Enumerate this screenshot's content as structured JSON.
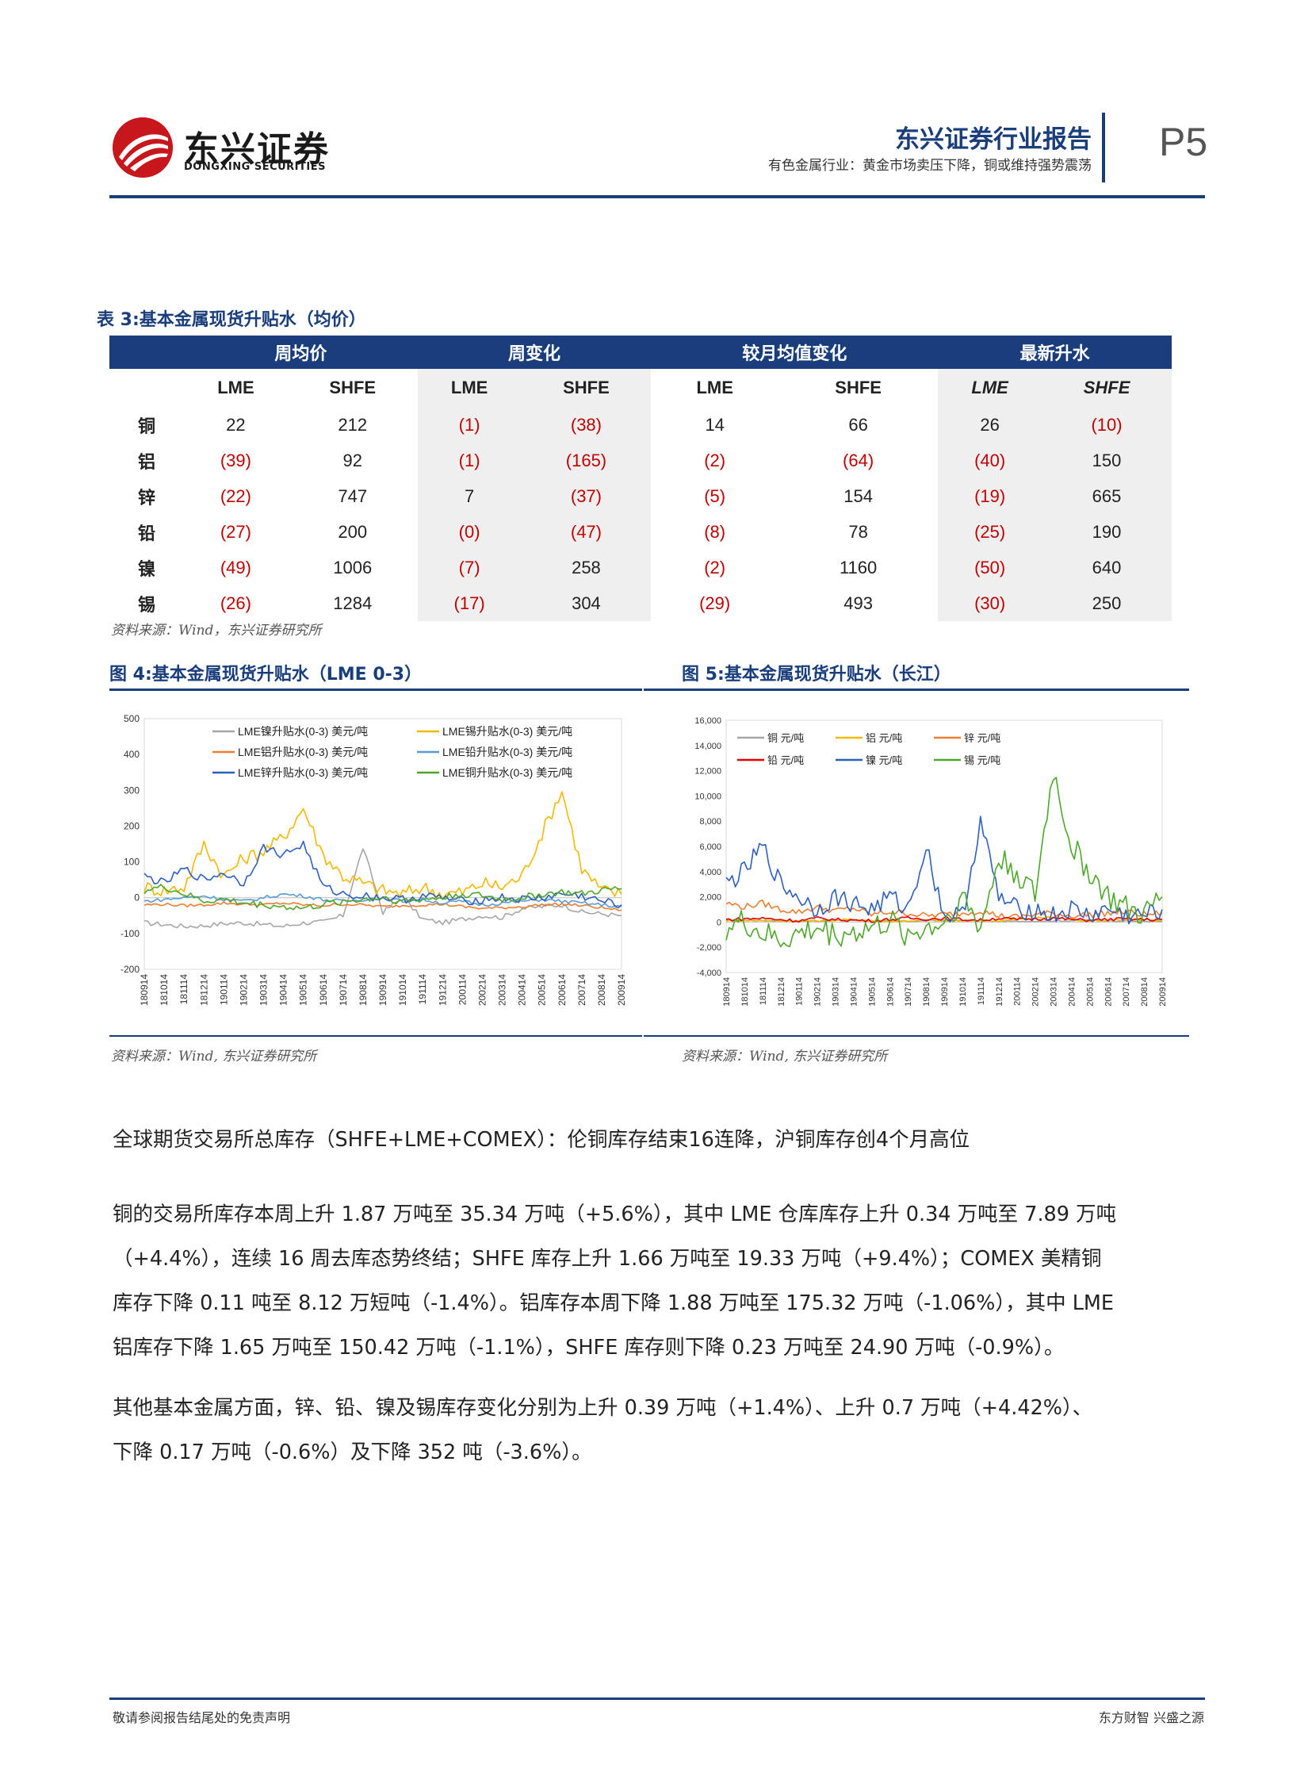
{
  "header": {
    "logo_cn": "东兴证券",
    "logo_en": "DONGXING SECURITIES",
    "report_type": "东兴证券行业报告",
    "subtitle": "有色金属行业：黄金市场卖压下降，铜或维持强势震荡",
    "page": "P5"
  },
  "table": {
    "title": "表 3:基本金属现货升贴水（均价）",
    "groups": [
      "周均价",
      "周变化",
      "较月均值变化",
      "最新升水"
    ],
    "subheaders": [
      "LME",
      "SHFE",
      "LME",
      "SHFE",
      "LME",
      "SHFE",
      "LME",
      "SHFE"
    ],
    "rows": [
      {
        "name": "铜",
        "values": [
          "22",
          "212",
          "(1)",
          "(38)",
          "14",
          "66",
          "26",
          "(10)"
        ]
      },
      {
        "name": "铝",
        "values": [
          "(39)",
          "92",
          "(1)",
          "(165)",
          "(2)",
          "(64)",
          "(40)",
          "150"
        ]
      },
      {
        "name": "锌",
        "values": [
          "(22)",
          "747",
          "7",
          "(37)",
          "(5)",
          "154",
          "(19)",
          "665"
        ]
      },
      {
        "name": "铅",
        "values": [
          "(27)",
          "200",
          "(0)",
          "(47)",
          "(8)",
          "78",
          "(25)",
          "190"
        ]
      },
      {
        "name": "镍",
        "values": [
          "(49)",
          "1006",
          "(7)",
          "258",
          "(2)",
          "1160",
          "(50)",
          "640"
        ]
      },
      {
        "name": "锡",
        "values": [
          "(26)",
          "1284",
          "(17)",
          "304",
          "(29)",
          "493",
          "(30)",
          "250"
        ]
      }
    ],
    "source": "资料来源：Wind，东兴证券研究所"
  },
  "figure4": {
    "title": "图 4:基本金属现货升贴水（LME 0-3）",
    "source": "资料来源：Wind, 东兴证券研究所"
  },
  "figure5": {
    "title": "图 5:基本金属现货升贴水（长江）",
    "source": "资料来源：Wind, 东兴证券研究所"
  },
  "chart_data": [
    {
      "type": "line",
      "y_ticks": [
        "500",
        "400",
        "300",
        "200",
        "100",
        "0",
        "-100",
        "-200"
      ],
      "ylim": [
        -200,
        500
      ],
      "x_ticks": [
        "180914",
        "181014",
        "181114",
        "181214",
        "190114",
        "190214",
        "190314",
        "190414",
        "190514",
        "190614",
        "190714",
        "190814",
        "190914",
        "191014",
        "191114",
        "191214",
        "200114",
        "200214",
        "200314",
        "200414",
        "200514",
        "200614",
        "200714",
        "200814",
        "200914"
      ],
      "series": [
        {
          "name": "LME镍升贴水(0-3) 美元/吨",
          "color": "#a6a6a6",
          "values": [
            -70,
            -75,
            -80,
            -78,
            -72,
            -70,
            -75,
            -80,
            -70,
            -68,
            -50,
            140,
            -40,
            0,
            -60,
            -70,
            -60,
            -50,
            -55,
            -30,
            -25,
            -20,
            -40,
            -45,
            -50
          ]
        },
        {
          "name": "LME锡升贴水(0-3) 美元/吨",
          "color": "#f5b800",
          "values": [
            30,
            20,
            30,
            150,
            60,
            110,
            130,
            170,
            250,
            120,
            60,
            40,
            20,
            10,
            30,
            10,
            15,
            40,
            30,
            60,
            180,
            300,
            80,
            20,
            10
          ]
        },
        {
          "name": "LME铝升贴水(0-3) 美元/吨",
          "color": "#ed7d31",
          "values": [
            -20,
            -18,
            -22,
            -20,
            -15,
            -18,
            -20,
            -15,
            -20,
            -22,
            -18,
            -20,
            -25,
            -22,
            -20,
            -18,
            -25,
            -30,
            -28,
            -25,
            -20,
            -18,
            -22,
            -28,
            -35
          ]
        },
        {
          "name": "LME铅升贴水(0-3) 美元/吨",
          "color": "#5b9bd5",
          "values": [
            -10,
            -5,
            0,
            5,
            -5,
            -10,
            0,
            10,
            5,
            -5,
            -10,
            -5,
            0,
            -10,
            -5,
            -15,
            -10,
            -20,
            -15,
            -10,
            -5,
            -10,
            -15,
            -20,
            -25
          ]
        },
        {
          "name": "LME锌升贴水(0-3) 美元/吨",
          "color": "#2e5fbf",
          "values": [
            60,
            40,
            80,
            50,
            70,
            40,
            140,
            120,
            150,
            30,
            10,
            5,
            0,
            -5,
            5,
            0,
            -10,
            -5,
            0,
            -5,
            0,
            10,
            5,
            -10,
            -20
          ]
        },
        {
          "name": "LME铜升贴水(0-3) 美元/吨",
          "color": "#4ea72a",
          "values": [
            20,
            30,
            10,
            -10,
            -5,
            -15,
            -20,
            -25,
            -30,
            -20,
            -10,
            -5,
            0,
            -10,
            -5,
            0,
            10,
            5,
            -5,
            0,
            10,
            15,
            10,
            20,
            25
          ]
        }
      ]
    },
    {
      "type": "line",
      "y_ticks": [
        "16,000",
        "14,000",
        "12,000",
        "10,000",
        "8,000",
        "6,000",
        "4,000",
        "2,000",
        "0",
        "-2,000",
        "-4,000"
      ],
      "ylim": [
        -4000,
        16000
      ],
      "x_ticks": [
        "180914",
        "181014",
        "181114",
        "181214",
        "190114",
        "190214",
        "190314",
        "190414",
        "190514",
        "190614",
        "190714",
        "190814",
        "190914",
        "191014",
        "191114",
        "191214",
        "200114",
        "200214",
        "200314",
        "200414",
        "200514",
        "200614",
        "200714",
        "200814",
        "200914"
      ],
      "series": [
        {
          "name": "铜 元/吨",
          "color": "#a6a6a6",
          "values": [
            100,
            150,
            120,
            100,
            80,
            100,
            120,
            150,
            100,
            80,
            60,
            100,
            120,
            150,
            100,
            50,
            60,
            80,
            100,
            120,
            150,
            100,
            80,
            60,
            50
          ]
        },
        {
          "name": "铝 元/吨",
          "color": "#f5b800",
          "values": [
            100,
            120,
            150,
            100,
            80,
            100,
            150,
            200,
            100,
            50,
            100,
            150,
            120,
            100,
            150,
            100,
            200,
            300,
            400,
            200,
            100,
            150,
            200,
            150,
            100
          ]
        },
        {
          "name": "锌 元/吨",
          "color": "#ed7d31",
          "values": [
            1500,
            1200,
            1500,
            1000,
            800,
            1200,
            900,
            1100,
            600,
            800,
            700,
            500,
            600,
            700,
            900,
            500,
            400,
            600,
            700,
            500,
            600,
            700,
            800,
            600,
            700
          ]
        },
        {
          "name": "铅 元/吨",
          "color": "#e00000",
          "values": [
            200,
            250,
            300,
            200,
            100,
            300,
            200,
            150,
            100,
            200,
            300,
            250,
            300,
            200,
            150,
            300,
            200,
            250,
            300,
            200,
            150,
            200,
            250,
            200,
            200
          ]
        },
        {
          "name": "镍 元/吨",
          "color": "#2e5fbf",
          "values": [
            3000,
            4000,
            6000,
            3000,
            2000,
            1000,
            2000,
            1500,
            1000,
            2000,
            1000,
            6000,
            500,
            500,
            8000,
            2000,
            1000,
            1000,
            500,
            1000,
            500,
            1000,
            500,
            500,
            1000
          ]
        },
        {
          "name": "锡 元/吨",
          "color": "#4ea72a",
          "values": [
            -500,
            0,
            -1000,
            -1500,
            -1000,
            -500,
            -1000,
            -800,
            -500,
            0,
            -1000,
            -500,
            0,
            2000,
            -500,
            5000,
            4000,
            2000,
            12000,
            6000,
            4000,
            2000,
            1000,
            500,
            2000
          ]
        }
      ]
    }
  ],
  "body": {
    "heading": "全球期货交易所总库存（SHFE+LME+COMEX）：伦铜库存结束16连降，沪铜库存创4个月高位",
    "p1_lines": [
      "铜的交易所库存本周上升 1.87 万吨至 35.34 万吨（+5.6%），其中 LME 仓库库存上升 0.34 万吨至 7.89 万吨",
      "（+4.4%），连续 16 周去库态势终结；SHFE 库存上升 1.66 万吨至 19.33 万吨（+9.4%）；COMEX 美精铜",
      "库存下降 0.11 吨至 8.12 万短吨（-1.4%）。铝库存本周下降 1.88 万吨至 175.32 万吨（-1.06%），其中 LME",
      "铝库存下降 1.65 万吨至 150.42 万吨（-1.1%），SHFE 库存则下降 0.23 万吨至 24.90 万吨（-0.9%）。"
    ],
    "p2_lines": [
      "其他基本金属方面，锌、铅、镍及锡库存变化分别为上升 0.39 万吨（+1.4%）、上升 0.7 万吨（+4.42%）、",
      "下降 0.17 万吨（-0.6%）及下降 352 吨（-3.6%）。"
    ]
  },
  "footer": {
    "left": "敬请参阅报告结尾处的免责声明",
    "right": "东方财智  兴盛之源"
  }
}
